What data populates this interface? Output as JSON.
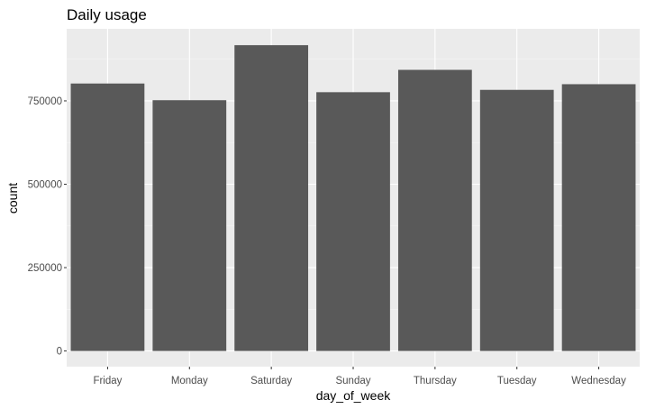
{
  "chart_data": {
    "type": "bar",
    "title": "Daily usage",
    "xlabel": "day_of_week",
    "ylabel": "count",
    "categories": [
      "Friday",
      "Monday",
      "Saturday",
      "Sunday",
      "Thursday",
      "Tuesday",
      "Wednesday"
    ],
    "values": [
      802000,
      752000,
      917000,
      776000,
      843000,
      783000,
      800000
    ],
    "ylim": [
      -47000,
      966000
    ],
    "yticks": [
      0,
      250000,
      500000,
      750000
    ],
    "ytick_labels": [
      "0",
      "250000",
      "500000",
      "750000"
    ],
    "grid": true,
    "legend": "none",
    "colors": {
      "bar": "#595959",
      "panel": "#ebebeb",
      "grid_major": "#ffffff",
      "grid_minor": "#f5f5f5",
      "tick_text": "#4d4d4d"
    }
  }
}
